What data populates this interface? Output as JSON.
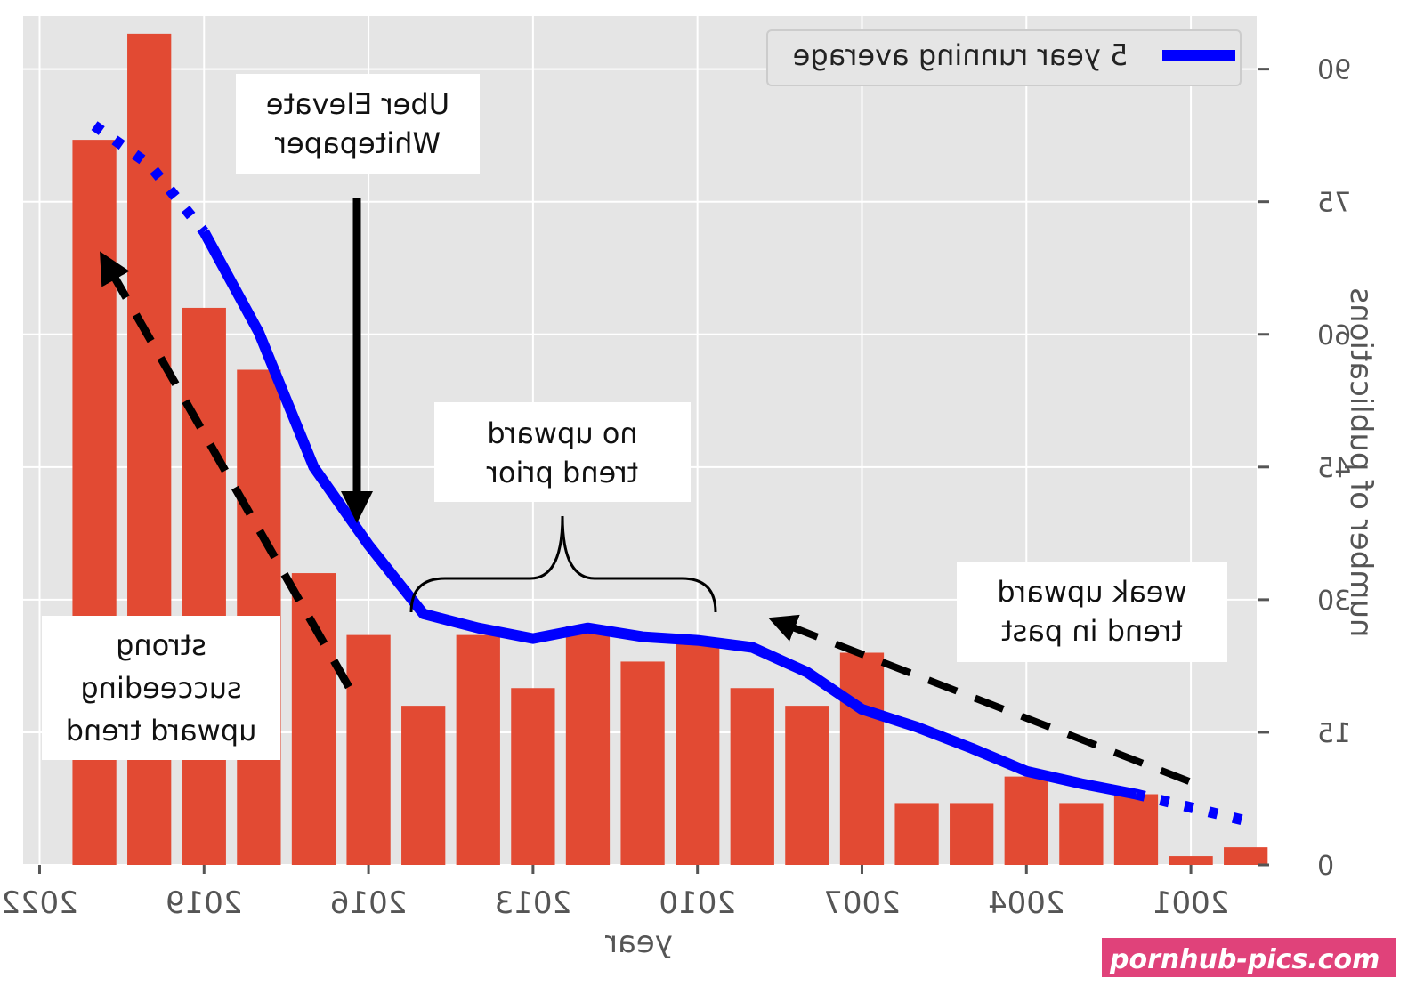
{
  "chart_data": {
    "type": "bar",
    "mirrored": true,
    "xlabel": "year",
    "ylabel": "number of publications",
    "ylim": [
      0,
      96
    ],
    "xlim": [
      2022.3,
      1999.8
    ],
    "x_ticks": [
      2022,
      2019,
      2016,
      2013,
      2010,
      2007,
      2004,
      2001
    ],
    "y_ticks": [
      0,
      15,
      30,
      45,
      60,
      75,
      90
    ],
    "grid": true,
    "bar_color": "#e24a33",
    "line_color": "#0000ff",
    "bars": {
      "years": [
        2021,
        2020,
        2019,
        2018,
        2017,
        2016,
        2015,
        2014,
        2013,
        2012,
        2011,
        2010,
        2009,
        2008,
        2007,
        2006,
        2005,
        2004,
        2003,
        2002,
        2001,
        2000
      ],
      "values": [
        82,
        94,
        63,
        56,
        33,
        26,
        18,
        26,
        20,
        27,
        23,
        25,
        20,
        18,
        24,
        7,
        7,
        10,
        7,
        8,
        1,
        2
      ]
    },
    "series": [
      {
        "name": "5 year running average",
        "style": "solid",
        "x": [
          2019,
          2018,
          2017,
          2016,
          2015,
          2014,
          2013,
          2012,
          2011,
          2010,
          2009,
          2008,
          2007,
          2006,
          2005,
          2004,
          2003,
          2002
        ],
        "values": [
          71.6,
          60.2,
          45.0,
          36.2,
          28.4,
          26.8,
          25.6,
          26.8,
          25.8,
          25.4,
          24.6,
          21.8,
          17.6,
          15.6,
          13.2,
          10.6,
          9.2,
          8.0
        ]
      },
      {
        "name": "",
        "style": "dotted",
        "x": [
          2021,
          2020,
          2019
        ],
        "values": [
          83.6,
          79.2,
          71.6
        ]
      },
      {
        "name": "",
        "style": "dotted",
        "x": [
          2002,
          2001,
          2000
        ],
        "values": [
          8.0,
          6.5,
          5.0
        ]
      }
    ],
    "legend": {
      "position": "top-right",
      "entries": [
        "5 year running average"
      ]
    },
    "annotations": {
      "uber": [
        "Uber Elevate",
        "Whitepaper"
      ],
      "no_trend": [
        "no upward",
        "trend prior"
      ],
      "weak": [
        "weak upward",
        "trend in past"
      ],
      "strong": [
        "strong",
        "succeeding",
        "upward trend"
      ]
    }
  },
  "watermark": "pornhub-pics.com"
}
